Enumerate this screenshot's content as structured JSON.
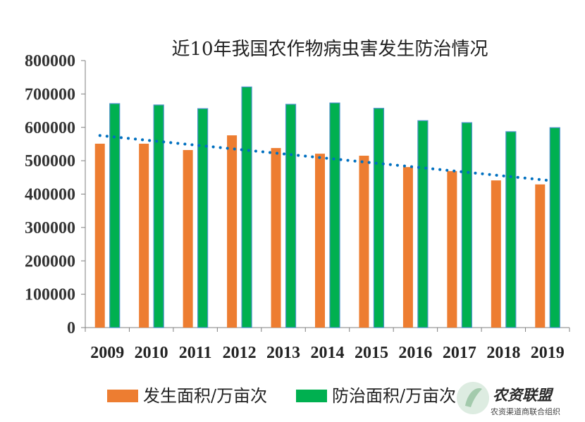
{
  "chart_data": {
    "type": "bar",
    "title": "近10年我国农作物病虫害发生防治情况",
    "categories": [
      "2009",
      "2010",
      "2011",
      "2012",
      "2013",
      "2014",
      "2015",
      "2016",
      "2017",
      "2018",
      "2019"
    ],
    "series": [
      {
        "name": "发生面积/万亩次",
        "color": "#ED7D31",
        "values": [
          551000,
          551000,
          532000,
          576000,
          538000,
          521000,
          515000,
          481000,
          469000,
          441000,
          429000
        ]
      },
      {
        "name": "防治面积/万亩次",
        "color": "#00B050",
        "values": [
          671000,
          667000,
          656000,
          721000,
          669000,
          673000,
          657000,
          620000,
          614000,
          587000,
          599000
        ]
      }
    ],
    "trendline": {
      "series": "发生面积/万亩次",
      "type": "linear",
      "color": "#0070C0",
      "style": "dotted"
    },
    "ylim": [
      0,
      800000
    ],
    "yticks": [
      "0",
      "100000",
      "200000",
      "300000",
      "400000",
      "500000",
      "600000",
      "700000",
      "800000"
    ],
    "legend": "bottom",
    "grid": false
  },
  "watermark": {
    "title": "农资联盟",
    "subtitle": "农资渠道商联合组织"
  }
}
